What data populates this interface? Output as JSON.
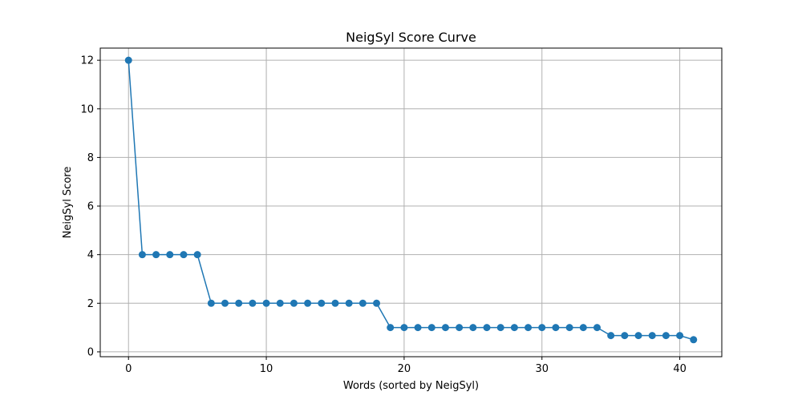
{
  "chart_data": {
    "type": "line",
    "title": "NeigSyl Score Curve",
    "xlabel": "Words (sorted by NeigSyl)",
    "ylabel": "NeigSyl Score",
    "xlim": [
      -2.05,
      43.05
    ],
    "ylim": [
      -0.2,
      12.5
    ],
    "xticks": [
      0,
      10,
      20,
      30,
      40
    ],
    "yticks": [
      0,
      2,
      4,
      6,
      8,
      10,
      12
    ],
    "xtick_labels": [
      "0",
      "10",
      "20",
      "30",
      "40"
    ],
    "ytick_labels": [
      "0",
      "2",
      "4",
      "6",
      "8",
      "10",
      "12"
    ],
    "grid": true,
    "legend": "none",
    "marker": "circle",
    "series": [
      {
        "color": "#1f77b4",
        "x": [
          0,
          1,
          2,
          3,
          4,
          5,
          6,
          7,
          8,
          9,
          10,
          11,
          12,
          13,
          14,
          15,
          16,
          17,
          18,
          19,
          20,
          21,
          22,
          23,
          24,
          25,
          26,
          27,
          28,
          29,
          30,
          31,
          32,
          33,
          34,
          35,
          36,
          37,
          38,
          39,
          40,
          41
        ],
        "y": [
          12,
          4,
          4,
          4,
          4,
          4,
          2,
          2,
          2,
          2,
          2,
          2,
          2,
          2,
          2,
          2,
          2,
          2,
          2,
          1,
          1,
          1,
          1,
          1,
          1,
          1,
          1,
          1,
          1,
          1,
          1,
          1,
          1,
          1,
          1,
          0.67,
          0.67,
          0.67,
          0.67,
          0.67,
          0.67,
          0.5
        ]
      }
    ]
  }
}
